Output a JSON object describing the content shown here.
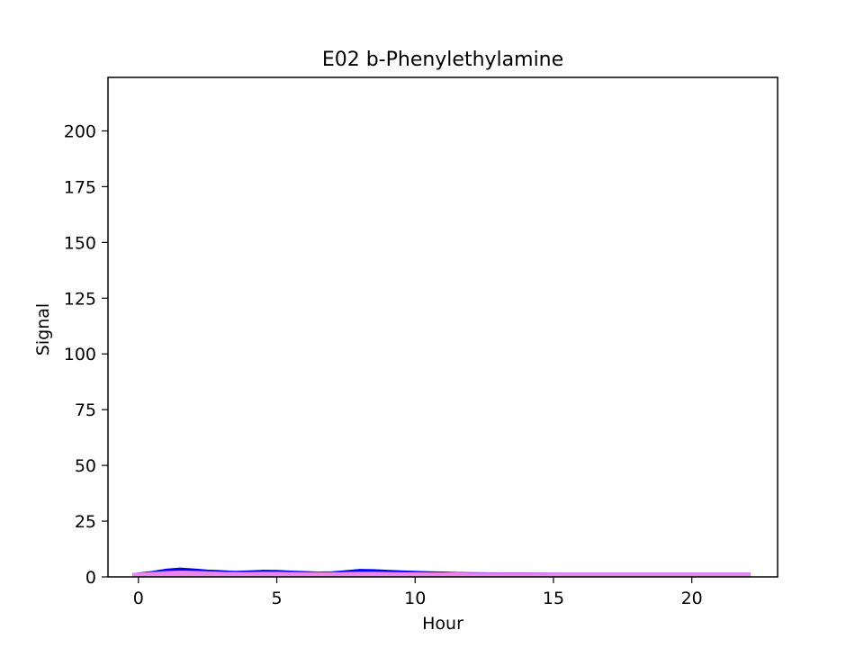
{
  "chart_data": {
    "type": "area",
    "title": "E02 b-Phenylethylamine",
    "xlabel": "Hour",
    "ylabel": "Signal",
    "xlim": [
      -1.1,
      23.1
    ],
    "ylim": [
      0,
      224
    ],
    "xticks": [
      0,
      5,
      10,
      15,
      20
    ],
    "yticks": [
      0,
      25,
      50,
      75,
      100,
      125,
      150,
      175,
      200
    ],
    "grid": false,
    "series": [
      {
        "color": "#0000ff",
        "x": [
          -0.2,
          0.5,
          1.0,
          1.5,
          2.0,
          2.5,
          3.0,
          3.5,
          4.0,
          4.5,
          5.0,
          5.5,
          6.0,
          6.5,
          7.0,
          7.5,
          8.0,
          8.5,
          9.0,
          9.5,
          10.0,
          10.5,
          11.0,
          11.5,
          12.0,
          13.0,
          14.0,
          15.0,
          16.0,
          17.0,
          18.0,
          19.0,
          20.0,
          21.0,
          22.1
        ],
        "y": [
          1.5,
          2.5,
          3.5,
          4.0,
          3.6,
          3.1,
          2.8,
          2.5,
          2.7,
          3.0,
          2.9,
          2.6,
          2.4,
          2.2,
          2.3,
          2.8,
          3.4,
          3.3,
          3.0,
          2.7,
          2.5,
          2.3,
          2.2,
          2.0,
          1.9,
          1.8,
          1.8,
          1.7,
          1.7,
          1.7,
          1.7,
          1.7,
          1.7,
          1.7,
          1.7
        ]
      },
      {
        "color": "#ee82ee",
        "x": [
          -0.2,
          0.5,
          1.0,
          1.5,
          2.0,
          2.5,
          3.0,
          3.5,
          4.0,
          4.5,
          5.0,
          5.5,
          6.0,
          6.5,
          7.0,
          7.5,
          8.0,
          8.5,
          9.0,
          9.5,
          10.0,
          10.5,
          11.0,
          11.5,
          12.0,
          13.0,
          14.0,
          15.0,
          16.0,
          17.0,
          18.0,
          19.0,
          20.0,
          21.0,
          22.1
        ],
        "y": [
          1.5,
          2.0,
          2.4,
          2.6,
          2.5,
          2.3,
          2.1,
          2.0,
          2.0,
          2.1,
          2.1,
          2.0,
          1.9,
          1.9,
          1.9,
          2.0,
          2.1,
          2.1,
          2.0,
          1.9,
          1.9,
          1.8,
          1.8,
          1.8,
          1.7,
          1.7,
          1.7,
          1.7,
          1.7,
          1.7,
          1.7,
          1.7,
          1.7,
          1.7,
          1.7
        ]
      }
    ]
  }
}
